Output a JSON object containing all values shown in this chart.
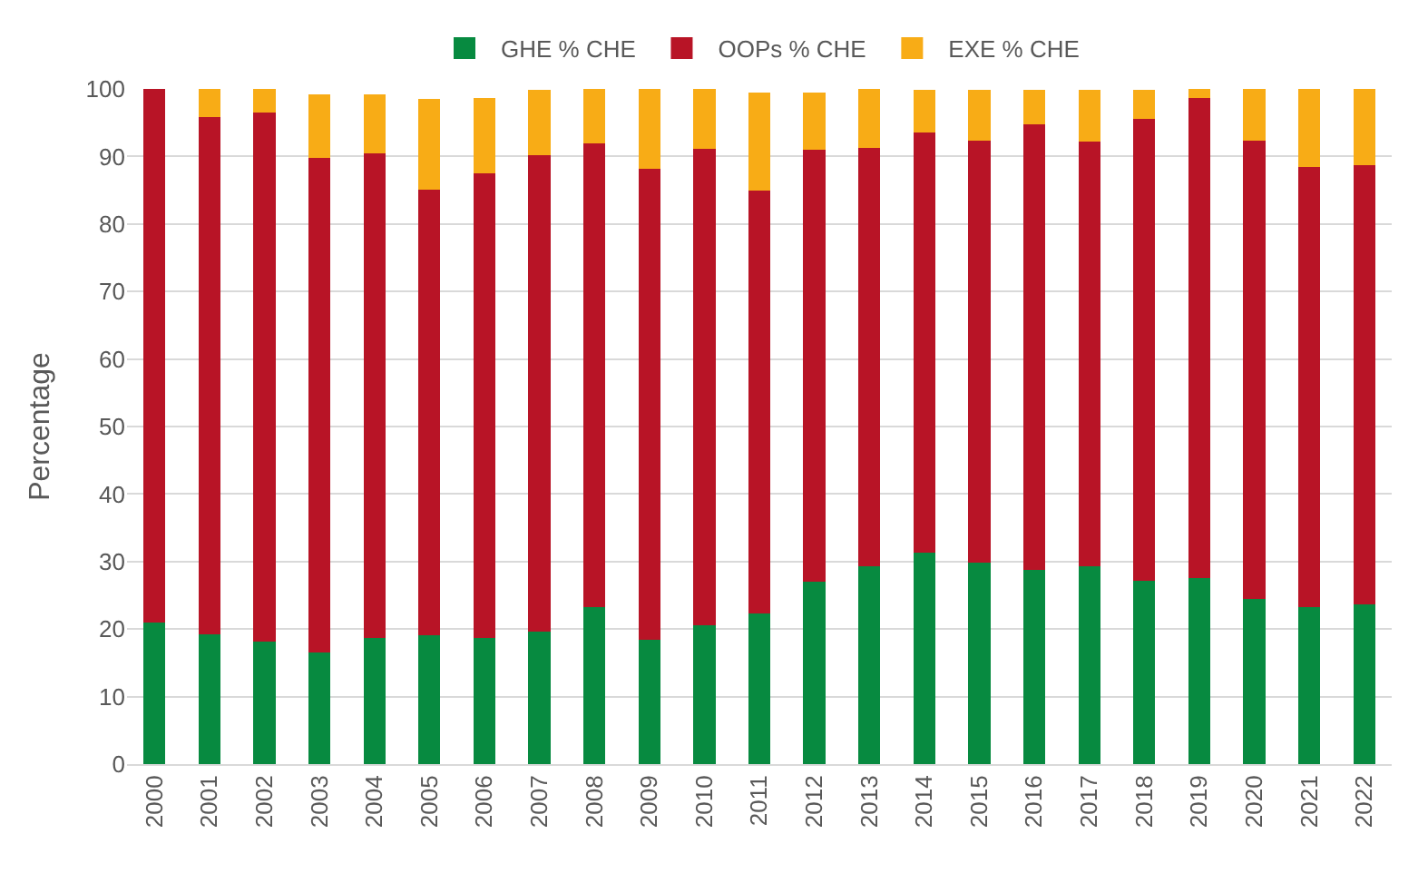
{
  "chart_data": {
    "type": "bar",
    "stacked": true,
    "ylabel": "Percentage",
    "categories": [
      "2000",
      "2001",
      "2002",
      "2003",
      "2004",
      "2005",
      "2006",
      "2007",
      "2008",
      "2009",
      "2010",
      "2011",
      "2012",
      "2013",
      "2014",
      "2015",
      "2016",
      "2017",
      "2018",
      "2019",
      "2020",
      "2021",
      "2022"
    ],
    "series": [
      {
        "name": "GHE % CHE",
        "color": "#078a40",
        "values": [
          21,
          19.2,
          18.2,
          16.5,
          18.7,
          19.1,
          18.7,
          19.6,
          23.3,
          18.4,
          20.6,
          22.3,
          27,
          29.3,
          31.3,
          29.8,
          28.8,
          29.3,
          27.2,
          27.5,
          24.4,
          23.3,
          23.6
        ]
      },
      {
        "name": "OOPs % CHE",
        "color": "#b81426",
        "values": [
          79,
          76.6,
          78.3,
          73.3,
          71.7,
          66,
          68.8,
          70.6,
          68.6,
          69.8,
          70.5,
          62.7,
          64,
          61.9,
          62.2,
          62.5,
          65.9,
          62.9,
          68.4,
          71.2,
          67.9,
          65.1,
          65.1
        ]
      },
      {
        "name": "EXE % CHE",
        "color": "#f8ac16",
        "values": [
          0,
          4.2,
          3.5,
          9.4,
          8.8,
          13.4,
          11.1,
          9.6,
          8.1,
          11.8,
          8.9,
          14.4,
          8.4,
          8.8,
          6.3,
          7.5,
          5.1,
          7.6,
          4.2,
          1.3,
          7.7,
          11.6,
          11.3
        ]
      }
    ],
    "ylim": [
      0,
      100
    ],
    "yticks": [
      0,
      10,
      20,
      30,
      40,
      50,
      60,
      70,
      80,
      90,
      100
    ],
    "grid": "y",
    "legend": "top"
  }
}
